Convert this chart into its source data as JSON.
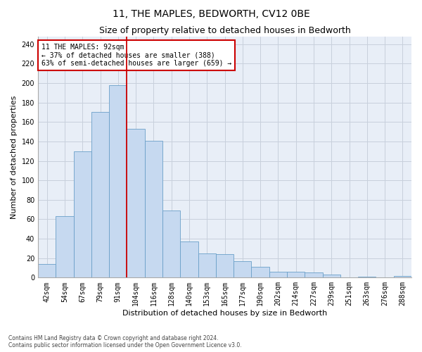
{
  "title": "11, THE MAPLES, BEDWORTH, CV12 0BE",
  "subtitle": "Size of property relative to detached houses in Bedworth",
  "xlabel": "Distribution of detached houses by size in Bedworth",
  "ylabel": "Number of detached properties",
  "categories": [
    "42sqm",
    "54sqm",
    "67sqm",
    "79sqm",
    "91sqm",
    "104sqm",
    "116sqm",
    "128sqm",
    "140sqm",
    "153sqm",
    "165sqm",
    "177sqm",
    "190sqm",
    "202sqm",
    "214sqm",
    "227sqm",
    "239sqm",
    "251sqm",
    "263sqm",
    "276sqm",
    "288sqm"
  ],
  "values": [
    14,
    63,
    130,
    170,
    198,
    153,
    141,
    69,
    37,
    25,
    24,
    17,
    11,
    6,
    6,
    5,
    3,
    0,
    1,
    0,
    2
  ],
  "bar_color": "#c6d9f0",
  "bar_edge_color": "#6a9fc8",
  "annotation_line1": "11 THE MAPLES: 92sqm",
  "annotation_line2": "← 37% of detached houses are smaller (388)",
  "annotation_line3": "63% of semi-detached houses are larger (659) →",
  "annotation_box_edgecolor": "#cc0000",
  "vline_color": "#cc0000",
  "ylim": [
    0,
    248
  ],
  "yticks": [
    0,
    20,
    40,
    60,
    80,
    100,
    120,
    140,
    160,
    180,
    200,
    220,
    240
  ],
  "grid_color": "#c8d0dc",
  "background_color": "#e8eef7",
  "footer_line1": "Contains HM Land Registry data © Crown copyright and database right 2024.",
  "footer_line2": "Contains public sector information licensed under the Open Government Licence v3.0.",
  "title_fontsize": 10,
  "subtitle_fontsize": 9,
  "tick_fontsize": 7,
  "ylabel_fontsize": 8,
  "xlabel_fontsize": 8
}
